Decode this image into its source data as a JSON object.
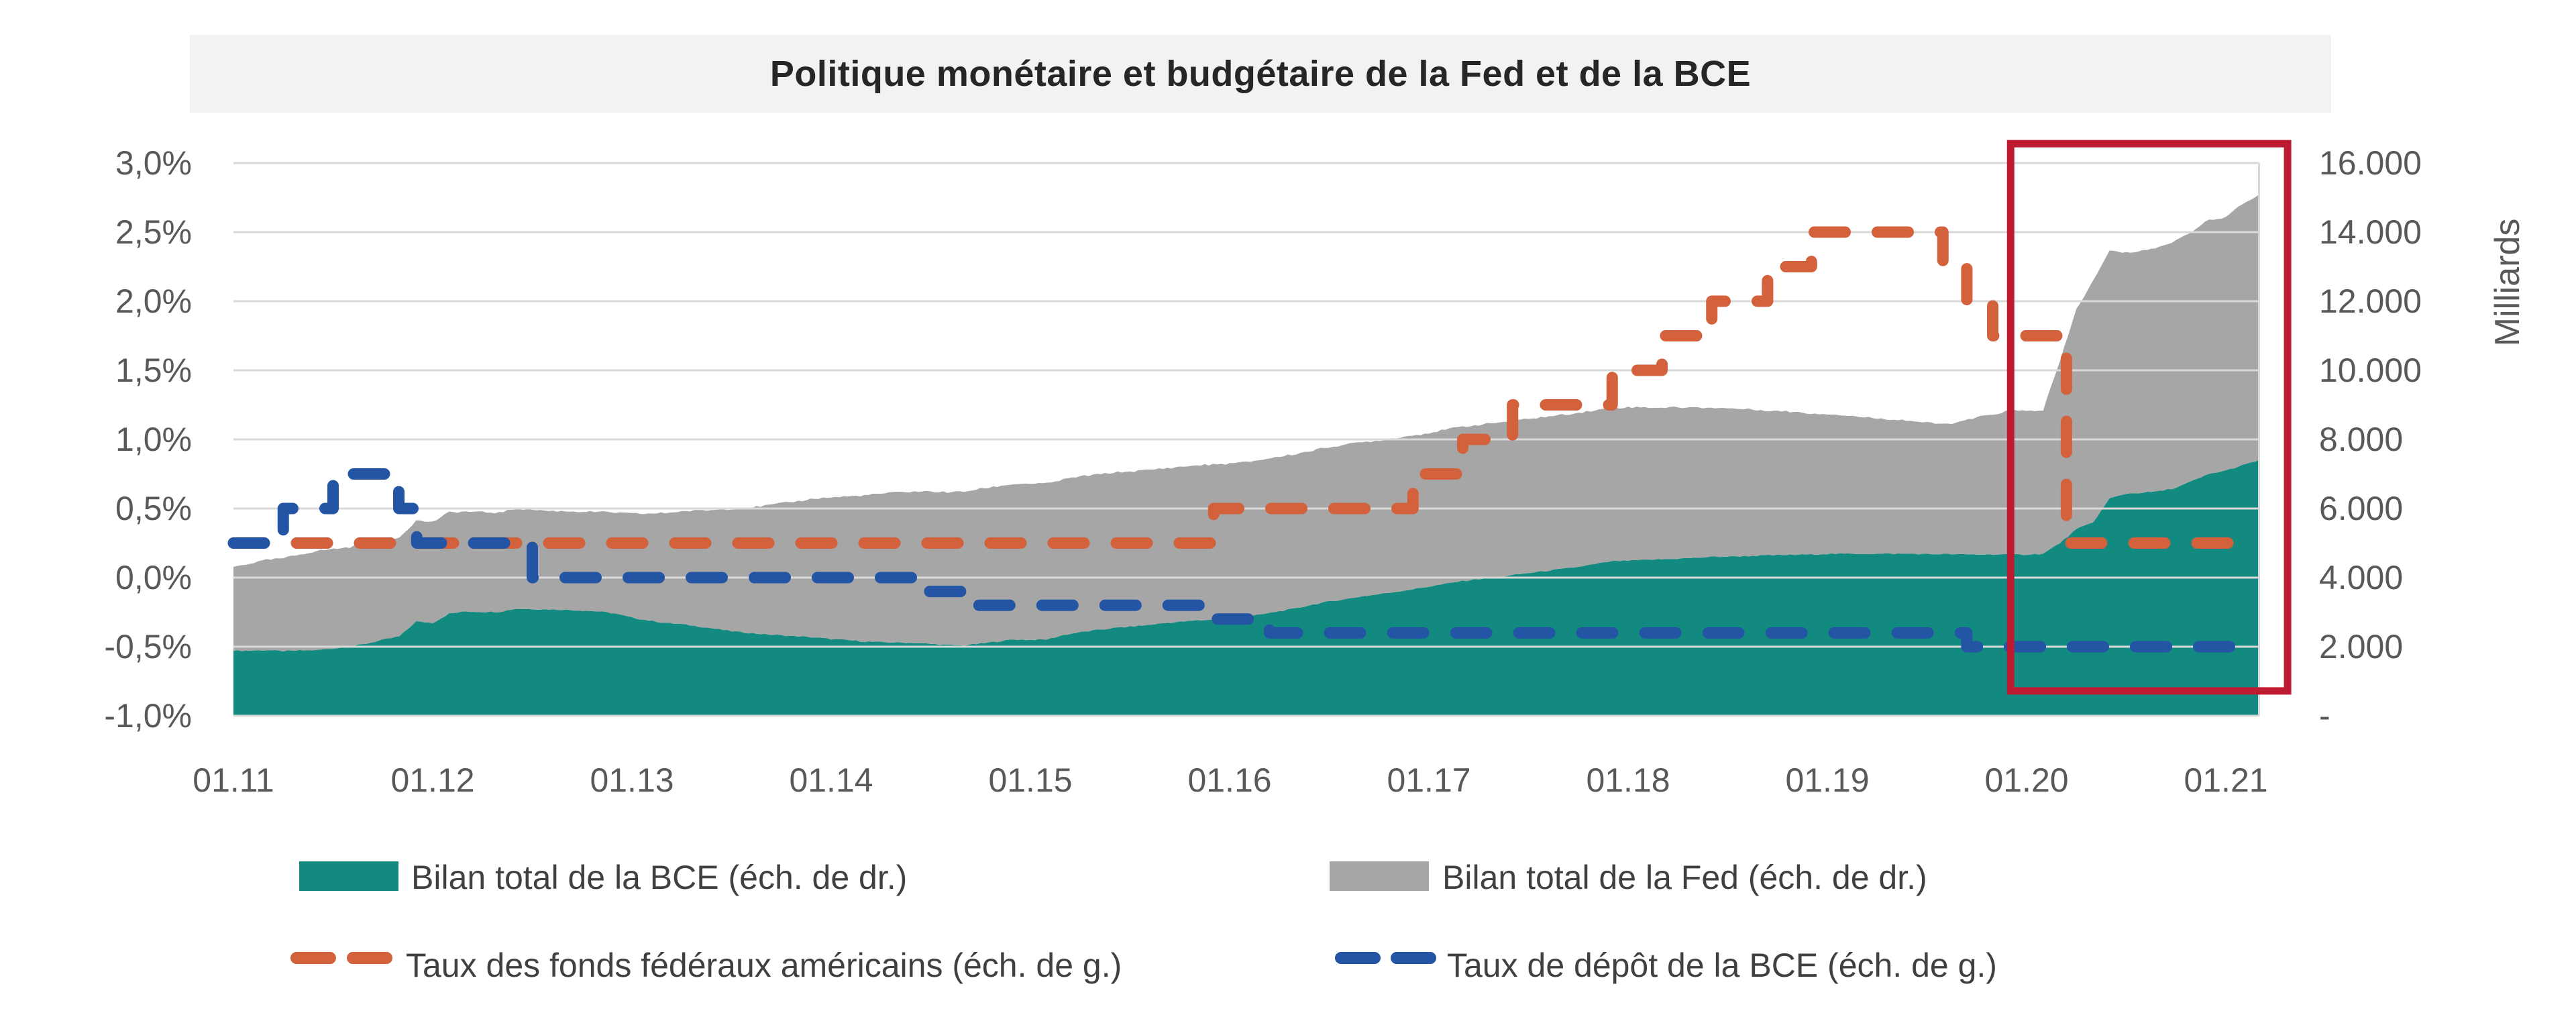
{
  "title": "Politique monétaire et budgétaire de la Fed et de la BCE",
  "colors": {
    "bce_area": "#128A80",
    "fed_area": "#A6A6A6",
    "fed_rate_line": "#D2613C",
    "bce_rate_line": "#2355A4",
    "highlight_box": "#BE1B32",
    "gridline": "#D9D9D9",
    "axis_text": "#595959",
    "legend_text": "#404040",
    "title_band": "#F2F2F2"
  },
  "chart_data": {
    "type": "area",
    "title": "Politique monétaire et budgétaire de la Fed et de la BCE",
    "grid": true,
    "left_axis": {
      "unit": "%",
      "min": -1.0,
      "max": 3.0,
      "ticks": [
        "3,0%",
        "2,5%",
        "2,0%",
        "1,5%",
        "1,0%",
        "0,5%",
        "0,0%",
        "-0,5%",
        "-1,0%"
      ],
      "tick_values": [
        3.0,
        2.5,
        2.0,
        1.5,
        1.0,
        0.5,
        0.0,
        -0.5,
        -1.0
      ]
    },
    "right_axis": {
      "title": "Milliards",
      "min": 0,
      "max": 16000,
      "ticks": [
        "16.000",
        "14.000",
        "12.000",
        "10.000",
        "8.000",
        "6.000",
        "4.000",
        "2.000",
        "-"
      ],
      "tick_values": [
        16000,
        14000,
        12000,
        10000,
        8000,
        6000,
        4000,
        2000,
        0
      ]
    },
    "x_axis": {
      "ticks": [
        "01.11",
        "01.12",
        "01.13",
        "01.14",
        "01.15",
        "01.16",
        "01.17",
        "01.18",
        "01.19",
        "01.20",
        "01.21"
      ],
      "tick_years": [
        2011,
        2012,
        2013,
        2014,
        2015,
        2016,
        2017,
        2018,
        2019,
        2020,
        2021
      ]
    },
    "series": [
      {
        "name": "Bilan total de la BCE (éch. de dr.)",
        "type": "area",
        "axis": "right",
        "stacked": true,
        "color": "#128A80",
        "start_year": 2011,
        "points_per_year": 12,
        "values": [
          1880,
          1890,
          1900,
          1870,
          1890,
          1900,
          1950,
          2000,
          2090,
          2200,
          2300,
          2730,
          2690,
          2960,
          3020,
          3010,
          3010,
          3100,
          3090,
          3080,
          3070,
          3050,
          3020,
          2960,
          2840,
          2760,
          2690,
          2650,
          2590,
          2520,
          2450,
          2400,
          2360,
          2330,
          2300,
          2270,
          2220,
          2190,
          2150,
          2130,
          2120,
          2110,
          2080,
          2050,
          2040,
          2090,
          2150,
          2210,
          2200,
          2210,
          2340,
          2420,
          2480,
          2540,
          2580,
          2620,
          2680,
          2720,
          2760,
          2780,
          2820,
          2870,
          2940,
          3030,
          3110,
          3220,
          3310,
          3380,
          3460,
          3520,
          3590,
          3660,
          3740,
          3820,
          3900,
          3960,
          4010,
          4070,
          4130,
          4190,
          4250,
          4310,
          4390,
          4470,
          4490,
          4510,
          4530,
          4550,
          4570,
          4600,
          4610,
          4620,
          4640,
          4650,
          4660,
          4670,
          4690,
          4690,
          4690,
          4690,
          4690,
          4690,
          4680,
          4680,
          4670,
          4670,
          4670,
          4670,
          4670,
          4690,
          5000,
          5400,
          5600,
          6290,
          6430,
          6460,
          6500,
          6600,
          6800,
          7000,
          7100,
          7250,
          7400
        ]
      },
      {
        "name": "Bilan total de la Fed (éch. de dr.)",
        "type": "area",
        "axis": "right",
        "stacked": true,
        "color": "#A6A6A6",
        "start_year": 2011,
        "points_per_year": 12,
        "values": [
          2430,
          2520,
          2610,
          2690,
          2780,
          2870,
          2880,
          2880,
          2880,
          2870,
          2870,
          2920,
          2920,
          2930,
          2890,
          2880,
          2870,
          2890,
          2880,
          2850,
          2850,
          2860,
          2880,
          2920,
          3010,
          3090,
          3180,
          3270,
          3350,
          3440,
          3540,
          3620,
          3720,
          3820,
          3910,
          4020,
          4100,
          4160,
          4230,
          4300,
          4350,
          4380,
          4410,
          4420,
          4450,
          4480,
          4490,
          4500,
          4520,
          4510,
          4500,
          4510,
          4500,
          4500,
          4490,
          4490,
          4480,
          4480,
          4490,
          4490,
          4480,
          4470,
          4480,
          4470,
          4470,
          4460,
          4470,
          4470,
          4460,
          4450,
          4460,
          4450,
          4450,
          4460,
          4470,
          4460,
          4470,
          4460,
          4470,
          4460,
          4460,
          4460,
          4450,
          4440,
          4440,
          4420,
          4390,
          4380,
          4350,
          4320,
          4290,
          4260,
          4210,
          4170,
          4140,
          4080,
          4050,
          4010,
          3960,
          3920,
          3890,
          3850,
          3800,
          3760,
          3830,
          3970,
          4050,
          4170,
          4150,
          4160,
          5250,
          6370,
          6980,
          7170,
          6970,
          7010,
          7060,
          7160,
          7240,
          7360,
          7330,
          7560,
          7690
        ]
      },
      {
        "name": "Taux des fonds fédéraux américains (éch. de g.)",
        "type": "step-line",
        "axis": "left",
        "color": "#D2613C",
        "steps": [
          [
            2011.0,
            0.25
          ],
          [
            2015.92,
            0.5
          ],
          [
            2016.92,
            0.75
          ],
          [
            2017.17,
            1.0
          ],
          [
            2017.42,
            1.25
          ],
          [
            2017.92,
            1.5
          ],
          [
            2018.17,
            1.75
          ],
          [
            2018.42,
            2.0
          ],
          [
            2018.7,
            2.25
          ],
          [
            2018.92,
            2.5
          ],
          [
            2019.58,
            2.25
          ],
          [
            2019.7,
            2.0
          ],
          [
            2019.83,
            1.75
          ],
          [
            2020.2,
            0.25
          ]
        ],
        "end_year": 2021.17
      },
      {
        "name": "Taux de dépôt de la BCE (éch. de g.)",
        "type": "step-line",
        "axis": "left",
        "color": "#2355A4",
        "steps": [
          [
            2011.0,
            0.25
          ],
          [
            2011.25,
            0.5
          ],
          [
            2011.5,
            0.75
          ],
          [
            2011.83,
            0.5
          ],
          [
            2011.92,
            0.25
          ],
          [
            2012.5,
            0.0
          ],
          [
            2014.42,
            -0.1
          ],
          [
            2014.7,
            -0.2
          ],
          [
            2015.92,
            -0.3
          ],
          [
            2016.2,
            -0.4
          ],
          [
            2019.7,
            -0.5
          ]
        ],
        "end_year": 2021.17
      }
    ],
    "annotation_box": {
      "x_start_year": 2019.92,
      "x_end_year": 2021.31,
      "y_top_pct": 3.14,
      "y_bottom_pct": -0.82,
      "color": "#BE1B32"
    }
  },
  "legend": {
    "bce_area_label": "Bilan total de la BCE (éch. de dr.)",
    "fed_area_label": "Bilan total de la Fed (éch. de dr.)",
    "fed_rate_label": "Taux des fonds fédéraux américains (éch. de g.)",
    "bce_rate_label": "Taux de dépôt de la BCE (éch. de g.)"
  },
  "right_axis_title": "Milliards"
}
